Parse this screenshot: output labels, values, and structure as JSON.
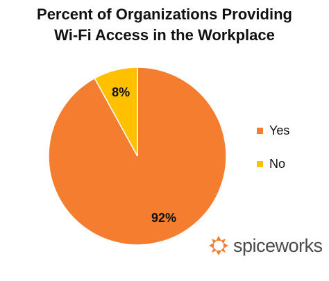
{
  "chart_data": {
    "type": "pie",
    "title_line1": "Percent of Organizations Providing",
    "title_line2": "Wi-Fi Access in the Workplace",
    "slices": [
      {
        "label": "Yes",
        "value": 92,
        "display": "92%",
        "color": "#F47D30"
      },
      {
        "label": "No",
        "value": 8,
        "display": "8%",
        "color": "#FFC000"
      }
    ],
    "legend_position": "right"
  },
  "brand": {
    "name": "spiceworks",
    "icon": "spiceworks-logo-icon",
    "color": "#F47D30"
  }
}
